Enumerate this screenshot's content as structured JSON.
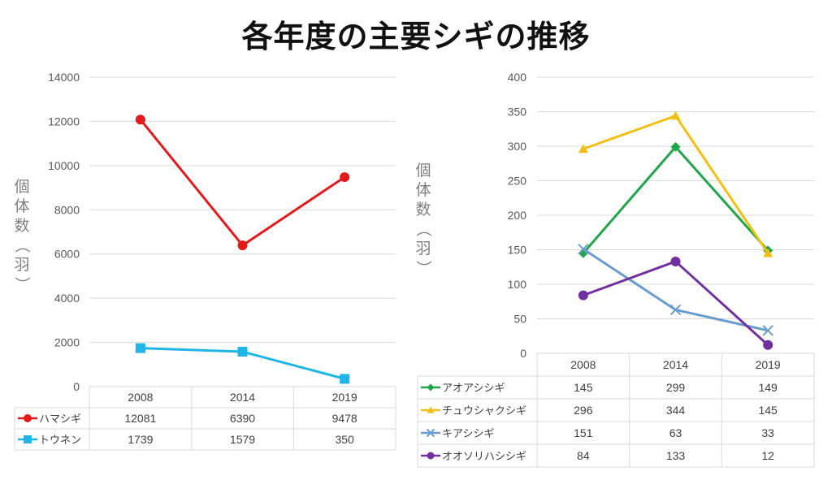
{
  "title": "各年度の主要シギの推移",
  "ylabel_chars": [
    "個",
    "体",
    "数",
    "（",
    "羽",
    "）"
  ],
  "chart_data": [
    {
      "type": "line",
      "categories": [
        "2008",
        "2014",
        "2019"
      ],
      "ylim": [
        0,
        14000
      ],
      "yticks": [
        0,
        2000,
        4000,
        6000,
        8000,
        10000,
        12000,
        14000
      ],
      "ylabel": "個体数（羽）",
      "grid": true,
      "legend_placement": "data-table-bottom",
      "series": [
        {
          "name": "ハマシギ",
          "values": [
            12081,
            6390,
            9478
          ],
          "color": "#e31a1c",
          "marker": "circle"
        },
        {
          "name": "トウネン",
          "values": [
            1739,
            1579,
            350
          ],
          "color": "#1fb5e6",
          "marker": "square"
        }
      ]
    },
    {
      "type": "line",
      "categories": [
        "2008",
        "2014",
        "2019"
      ],
      "ylim": [
        0,
        400
      ],
      "yticks": [
        0,
        50,
        100,
        150,
        200,
        250,
        300,
        350,
        400
      ],
      "ylabel": "個体数（羽）",
      "grid": true,
      "legend_placement": "data-table-bottom",
      "series": [
        {
          "name": "アオアシシギ",
          "values": [
            145,
            299,
            149
          ],
          "color": "#1fa64a",
          "marker": "diamond"
        },
        {
          "name": "チュウシャクシギ",
          "values": [
            296,
            344,
            145
          ],
          "color": "#f2c014",
          "marker": "triangle"
        },
        {
          "name": "キアシシギ",
          "values": [
            151,
            63,
            33
          ],
          "color": "#6a9ccf",
          "marker": "x"
        },
        {
          "name": "オオソリハシシギ",
          "values": [
            84,
            133,
            12
          ],
          "color": "#7030a0",
          "marker": "circle"
        }
      ]
    }
  ]
}
